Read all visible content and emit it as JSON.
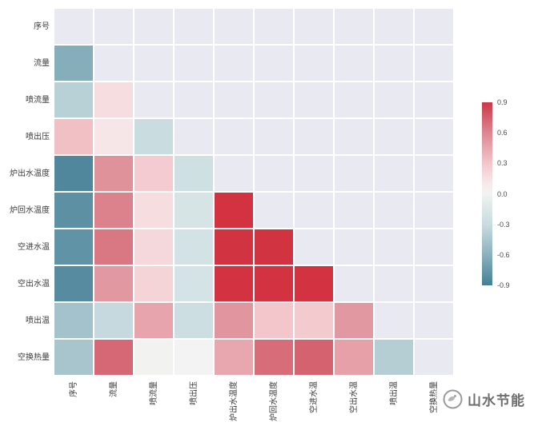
{
  "chart_data": {
    "type": "heatmap",
    "title": "",
    "variables": [
      "序号",
      "流量",
      "喷流量",
      "喷出压",
      "炉出水温度",
      "炉回水温度",
      "空进水温",
      "空出水温",
      "喷出温",
      "空换热量"
    ],
    "mask": "upper-triangle-including-diagonal",
    "matrix": [
      [
        null,
        null,
        null,
        null,
        null,
        null,
        null,
        null,
        null,
        null
      ],
      [
        -0.62,
        null,
        null,
        null,
        null,
        null,
        null,
        null,
        null,
        null
      ],
      [
        -0.38,
        0.17,
        null,
        null,
        null,
        null,
        null,
        null,
        null,
        null
      ],
      [
        0.33,
        0.12,
        -0.3,
        null,
        null,
        null,
        null,
        null,
        null,
        null
      ],
      [
        -0.85,
        0.55,
        0.27,
        -0.25,
        null,
        null,
        null,
        null,
        null,
        null
      ],
      [
        -0.8,
        0.62,
        0.17,
        -0.2,
        0.97,
        null,
        null,
        null,
        null,
        null
      ],
      [
        -0.78,
        0.66,
        0.2,
        -0.22,
        0.96,
        0.96,
        null,
        null,
        null,
        null
      ],
      [
        -0.82,
        0.52,
        0.22,
        -0.21,
        0.97,
        0.97,
        0.97,
        null,
        null,
        null
      ],
      [
        -0.48,
        -0.32,
        0.46,
        -0.28,
        0.53,
        0.3,
        0.28,
        0.52,
        null,
        null
      ],
      [
        -0.46,
        0.72,
        0.02,
        0.01,
        0.45,
        0.7,
        0.74,
        0.48,
        -0.4,
        null
      ]
    ],
    "colorbar": {
      "vmin": -0.9,
      "vmax": 0.9,
      "tick_labels": [
        "0.9",
        "0.6",
        "0.3",
        "0.0",
        "-0.3",
        "-0.6",
        "-0.9"
      ],
      "tick_values": [
        0.9,
        0.6,
        0.3,
        0.0,
        -0.3,
        -0.6,
        -0.9
      ],
      "position": "right"
    },
    "palette_stops": [
      {
        "v": -1.0,
        "color": "#38778f"
      },
      {
        "v": -0.9,
        "color": "#447f95"
      },
      {
        "v": -0.6,
        "color": "#8bb1bd"
      },
      {
        "v": -0.3,
        "color": "#c9dce0"
      },
      {
        "v": -0.1,
        "color": "#e2ebea"
      },
      {
        "v": 0.0,
        "color": "#f1f4f3"
      },
      {
        "v": 0.1,
        "color": "#f7e9ea"
      },
      {
        "v": 0.3,
        "color": "#f3c6cb"
      },
      {
        "v": 0.6,
        "color": "#dc8791"
      },
      {
        "v": 0.9,
        "color": "#cc3848"
      },
      {
        "v": 1.0,
        "color": "#d62f3c"
      }
    ],
    "masked_cell_color": "#e9e9f1",
    "gridline_color": "#ffffff",
    "legend_position": "right",
    "grid": true
  },
  "watermark": {
    "text": "山水节能",
    "logo": "circle-swirl-logo",
    "color": "#6e6e6e"
  }
}
